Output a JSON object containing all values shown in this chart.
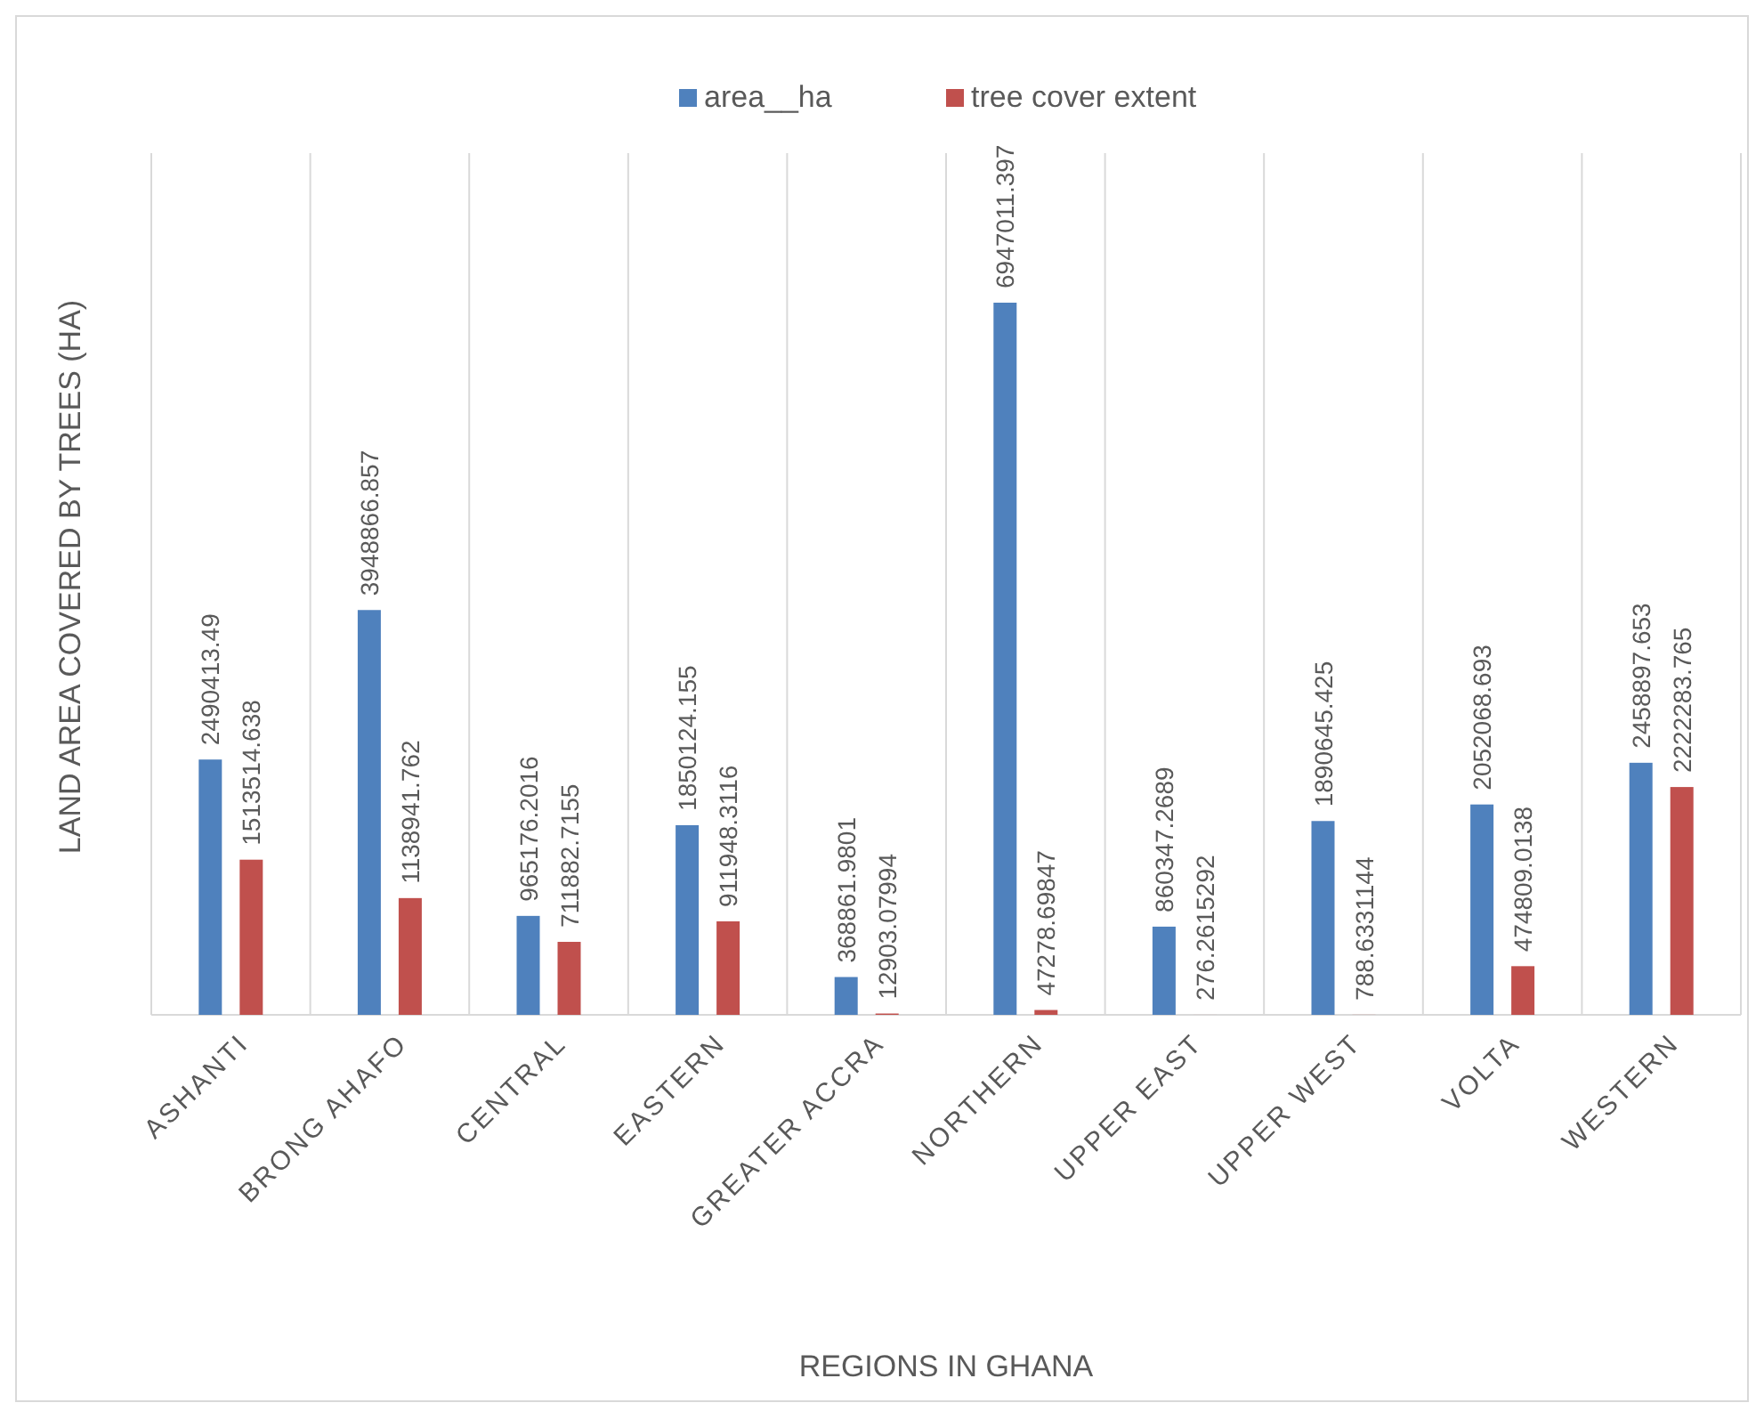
{
  "chart_data": {
    "type": "bar",
    "xlabel": "REGIONS IN GHANA",
    "ylabel": "LAND AREA COVERED BY TREES (HA)",
    "categories": [
      "ASHANTI",
      "BRONG AHAFO",
      "CENTRAL",
      "EASTERN",
      "GREATER ACCRA",
      "NORTHERN",
      "UPPER EAST",
      "UPPER WEST",
      "VOLTA",
      "WESTERN"
    ],
    "series": [
      {
        "name": "area__ha",
        "color": "#4f81bd",
        "values": [
          2490413.49,
          3948866.857,
          965176.2016,
          1850124.155,
          368861.9801,
          6947011.397,
          860347.2689,
          1890645.425,
          2052068.693,
          2458897.653
        ]
      },
      {
        "name": "tree cover extent",
        "color": "#c0504d",
        "values": [
          1513514.638,
          1138941.762,
          711882.7155,
          911948.3116,
          12903.07994,
          47278.69847,
          276.2615292,
          788.6331144,
          474809.0138,
          2222283.765
        ]
      }
    ],
    "data_labels": true,
    "grid": "x",
    "legend": "top"
  }
}
